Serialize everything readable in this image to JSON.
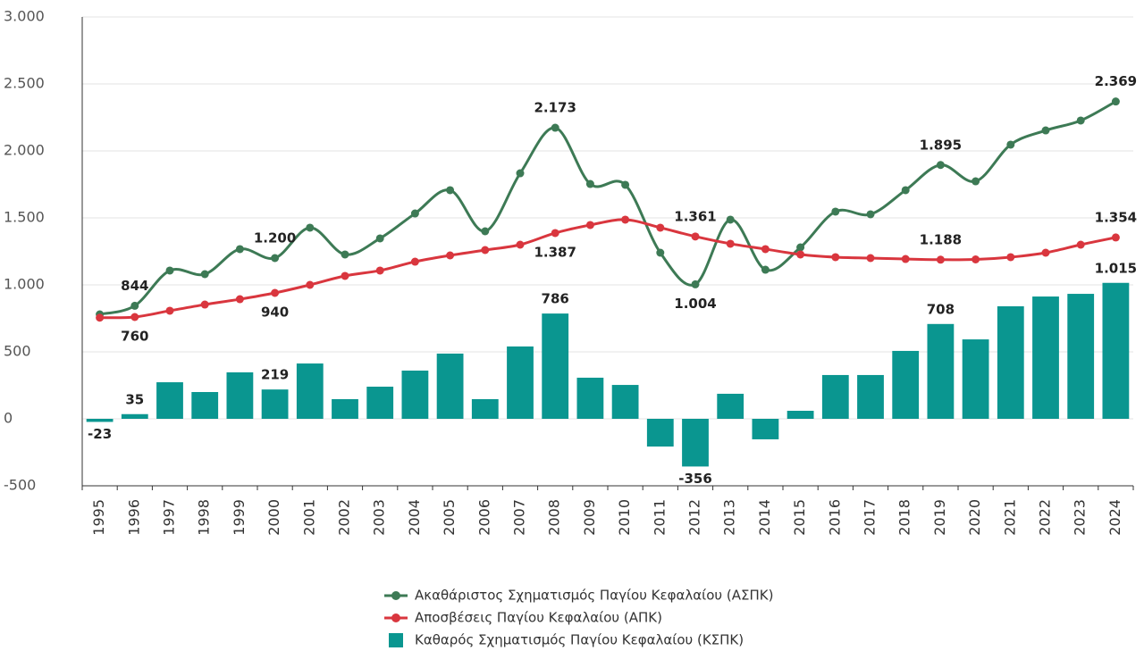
{
  "chart_data": {
    "type": "line",
    "categories": [
      "1995",
      "1996",
      "1997",
      "1998",
      "1999",
      "2000",
      "2001",
      "2002",
      "2003",
      "2004",
      "2005",
      "2006",
      "2007",
      "2008",
      "2009",
      "2010",
      "2011",
      "2012",
      "2013",
      "2014",
      "2015",
      "2016",
      "2017",
      "2018",
      "2019",
      "2020",
      "2021",
      "2022",
      "2023",
      "2024"
    ],
    "series": [
      {
        "name": "Ακαθάριστος Σχηματισμός Παγίου Κεφαλαίου (ΑΣΠΚ)",
        "type": "line",
        "color": "#3d7a55",
        "values": [
          780,
          844,
          1107,
          1080,
          1267,
          1200,
          1427,
          1227,
          1347,
          1533,
          1707,
          1400,
          1833,
          2173,
          1753,
          1747,
          1240,
          1004,
          1487,
          1113,
          1280,
          1547,
          1527,
          1707,
          1895,
          1773,
          2047,
          2153,
          2227,
          2369
        ],
        "value_labels": [
          null,
          "844",
          null,
          null,
          null,
          "1.200",
          null,
          null,
          null,
          null,
          null,
          null,
          null,
          "2.173",
          null,
          null,
          null,
          "1.004",
          null,
          null,
          null,
          null,
          null,
          null,
          "1.895",
          null,
          null,
          null,
          null,
          "2.369"
        ]
      },
      {
        "name": "Αποσβέσεις Παγίου Κεφαλαίου (ΑΠΚ)",
        "type": "line",
        "color": "#d9363e",
        "values": [
          755,
          760,
          807,
          853,
          893,
          940,
          1000,
          1067,
          1107,
          1173,
          1220,
          1260,
          1300,
          1387,
          1447,
          1487,
          1427,
          1361,
          1307,
          1267,
          1227,
          1207,
          1200,
          1193,
          1188,
          1190,
          1207,
          1240,
          1300,
          1354
        ],
        "value_labels": [
          null,
          "760",
          null,
          null,
          null,
          "940",
          null,
          null,
          null,
          null,
          null,
          null,
          null,
          "1.387",
          null,
          null,
          null,
          "1.361",
          null,
          null,
          null,
          null,
          null,
          null,
          "1.188",
          null,
          null,
          null,
          null,
          "1.354"
        ]
      },
      {
        "name": "Καθαρός Σχηματισμός Παγίου Κεφαλαίου (ΚΣΠΚ)",
        "type": "bar",
        "color": "#0a9690",
        "values": [
          -23,
          35,
          273,
          200,
          347,
          219,
          413,
          147,
          240,
          360,
          487,
          147,
          540,
          786,
          307,
          253,
          -207,
          -356,
          187,
          -153,
          60,
          327,
          327,
          507,
          708,
          593,
          840,
          913,
          933,
          1015
        ],
        "value_labels": [
          "-23",
          "35",
          null,
          null,
          null,
          "219",
          null,
          null,
          null,
          null,
          null,
          null,
          null,
          "786",
          null,
          null,
          null,
          "-356",
          null,
          null,
          null,
          null,
          null,
          null,
          "708",
          null,
          null,
          null,
          null,
          "1.015"
        ]
      }
    ],
    "ylim": [
      -500,
      3000
    ],
    "yticks": [
      -500,
      0,
      500,
      {
        "value": 1000,
        "label": "1.000"
      },
      {
        "value": 1500,
        "label": "1.500"
      },
      {
        "value": 2000,
        "label": "2.000"
      },
      {
        "value": 2500,
        "label": "2.500"
      },
      {
        "value": 3000,
        "label": "3.000"
      }
    ],
    "grid": true,
    "legend": "bottom"
  }
}
